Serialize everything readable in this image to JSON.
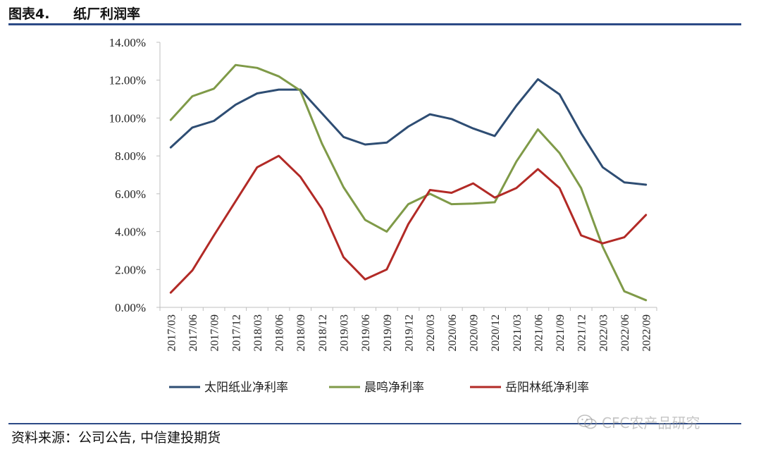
{
  "header": {
    "figure_number": "图表4.",
    "figure_title": "纸厂利润率"
  },
  "source_text": "资料来源：公司公告, 中信建投期货",
  "watermark_text": "CFC农产品研究",
  "colors": {
    "rule": "#2c4a86",
    "axis": "#bfbfbf",
    "text": "#222222"
  },
  "chart_data": {
    "type": "line",
    "title": "",
    "xlabel": "",
    "ylabel": "",
    "ylim": [
      0,
      0.14
    ],
    "yticks": [
      "0.00%",
      "2.00%",
      "4.00%",
      "6.00%",
      "8.00%",
      "10.00%",
      "12.00%",
      "14.00%"
    ],
    "grid": false,
    "legend_position": "bottom",
    "categories": [
      "2017/03",
      "2017/06",
      "2017/09",
      "2017/12",
      "2018/03",
      "2018/06",
      "2018/09",
      "2018/12",
      "2019/03",
      "2019/06",
      "2019/09",
      "2019/12",
      "2020/03",
      "2020/06",
      "2020/09",
      "2020/12",
      "2021/03",
      "2021/06",
      "2021/09",
      "2021/12",
      "2022/03",
      "2022/06",
      "2022/09"
    ],
    "series": [
      {
        "name": "太阳纸业净利率",
        "color": "#2e4d73",
        "values": [
          0.0845,
          0.095,
          0.0985,
          0.107,
          0.113,
          0.115,
          0.115,
          0.1025,
          0.09,
          0.086,
          0.087,
          0.0955,
          0.102,
          0.0995,
          0.0945,
          0.0905,
          0.1065,
          0.1205,
          0.1125,
          0.092,
          0.074,
          0.066,
          0.0648
        ]
      },
      {
        "name": "晨鸣净利率",
        "color": "#7f9a48",
        "values": [
          0.099,
          0.1115,
          0.1155,
          0.128,
          0.1265,
          0.122,
          0.1145,
          0.0865,
          0.0635,
          0.0462,
          0.04,
          0.0545,
          0.06,
          0.0545,
          0.0548,
          0.0555,
          0.077,
          0.094,
          0.0815,
          0.063,
          0.032,
          0.0085,
          0.0038
        ]
      },
      {
        "name": "岳阳林纸净利率",
        "color": "#b22a26",
        "values": [
          0.0078,
          0.0195,
          0.038,
          0.056,
          0.074,
          0.08,
          0.069,
          0.052,
          0.0265,
          0.0148,
          0.02,
          0.044,
          0.062,
          0.0605,
          0.0655,
          0.058,
          0.063,
          0.073,
          0.063,
          0.038,
          0.0338,
          0.037,
          0.0488
        ]
      }
    ]
  }
}
